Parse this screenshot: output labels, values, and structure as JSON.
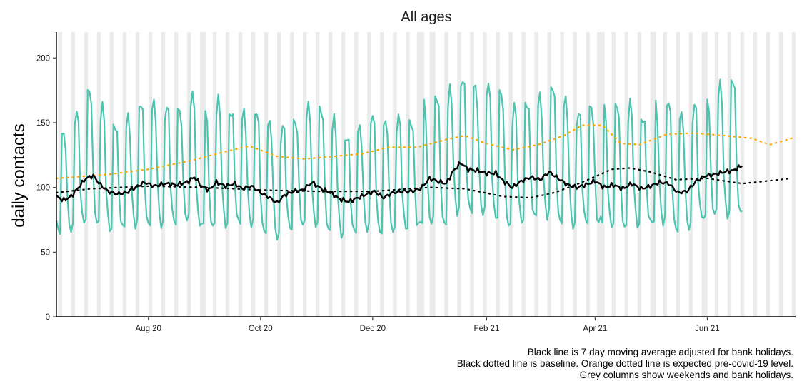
{
  "chart_data": {
    "type": "line",
    "title": "All ages",
    "xlabel": "",
    "ylabel": "daily contacts",
    "xlim": [
      "2020-06-12",
      "2021-07-19"
    ],
    "ylim": [
      0,
      220
    ],
    "y_ticks": [
      0,
      50,
      100,
      150,
      200
    ],
    "x_ticks": [
      {
        "label": "Aug 20",
        "date": "2020-08-01"
      },
      {
        "label": "Oct 20",
        "date": "2020-10-01"
      },
      {
        "label": "Dec 20",
        "date": "2020-12-01"
      },
      {
        "label": "Feb 21",
        "date": "2021-02-01"
      },
      {
        "label": "Apr 21",
        "date": "2021-04-01"
      },
      {
        "label": "Jun 21",
        "date": "2021-06-01"
      }
    ],
    "grid": false,
    "bank_holidays": [
      "2020-08-31",
      "2020-12-25",
      "2020-12-28",
      "2021-01-01",
      "2021-04-02",
      "2021-04-05",
      "2021-05-03",
      "2021-05-31"
    ],
    "daily_start": "2020-06-12",
    "daily_end": "2021-06-20",
    "expected_end": "2021-07-17",
    "colors": {
      "daily": "#4dc4b0",
      "moving_average": "#000000",
      "baseline": "#000000",
      "expected": "#ffa500",
      "weekend_columns": "#ebebeb"
    },
    "moving_average_points": [
      [
        "2020-06-12",
        93
      ],
      [
        "2020-06-16",
        90
      ],
      [
        "2020-06-20",
        93
      ],
      [
        "2020-06-24",
        100
      ],
      [
        "2020-06-28",
        107
      ],
      [
        "2020-07-02",
        109
      ],
      [
        "2020-07-06",
        102
      ],
      [
        "2020-07-10",
        97
      ],
      [
        "2020-07-15",
        95
      ],
      [
        "2020-07-20",
        96
      ],
      [
        "2020-07-25",
        100
      ],
      [
        "2020-07-30",
        104
      ],
      [
        "2020-08-04",
        101
      ],
      [
        "2020-08-10",
        103
      ],
      [
        "2020-08-16",
        102
      ],
      [
        "2020-08-22",
        104
      ],
      [
        "2020-08-26",
        108
      ],
      [
        "2020-08-30",
        101
      ],
      [
        "2020-09-03",
        98
      ],
      [
        "2020-09-07",
        104
      ],
      [
        "2020-09-12",
        101
      ],
      [
        "2020-09-17",
        103
      ],
      [
        "2020-09-21",
        99
      ],
      [
        "2020-09-26",
        101
      ],
      [
        "2020-10-01",
        96
      ],
      [
        "2020-10-06",
        92
      ],
      [
        "2020-10-10",
        88
      ],
      [
        "2020-10-14",
        94
      ],
      [
        "2020-10-19",
        97
      ],
      [
        "2020-10-24",
        98
      ],
      [
        "2020-10-29",
        104
      ],
      [
        "2020-11-03",
        99
      ],
      [
        "2020-11-08",
        96
      ],
      [
        "2020-11-13",
        91
      ],
      [
        "2020-11-18",
        89
      ],
      [
        "2020-11-23",
        92
      ],
      [
        "2020-11-28",
        95
      ],
      [
        "2020-12-02",
        97
      ],
      [
        "2020-12-07",
        92
      ],
      [
        "2020-12-12",
        96
      ],
      [
        "2020-12-17",
        97
      ],
      [
        "2020-12-22",
        97
      ],
      [
        "2020-12-27",
        99
      ],
      [
        "2021-01-01",
        107
      ],
      [
        "2021-01-05",
        105
      ],
      [
        "2021-01-10",
        103
      ],
      [
        "2021-01-14",
        113
      ],
      [
        "2021-01-18",
        119
      ],
      [
        "2021-01-22",
        114
      ],
      [
        "2021-01-27",
        113
      ],
      [
        "2021-02-01",
        111
      ],
      [
        "2021-02-06",
        111
      ],
      [
        "2021-02-10",
        105
      ],
      [
        "2021-02-15",
        100
      ],
      [
        "2021-02-20",
        105
      ],
      [
        "2021-02-25",
        108
      ],
      [
        "2021-03-02",
        106
      ],
      [
        "2021-03-07",
        112
      ],
      [
        "2021-03-12",
        107
      ],
      [
        "2021-03-17",
        102
      ],
      [
        "2021-03-22",
        100
      ],
      [
        "2021-03-27",
        102
      ],
      [
        "2021-04-01",
        105
      ],
      [
        "2021-04-06",
        100
      ],
      [
        "2021-04-11",
        102
      ],
      [
        "2021-04-16",
        99
      ],
      [
        "2021-04-21",
        103
      ],
      [
        "2021-04-26",
        99
      ],
      [
        "2021-05-01",
        101
      ],
      [
        "2021-05-06",
        104
      ],
      [
        "2021-05-11",
        103
      ],
      [
        "2021-05-16",
        96
      ],
      [
        "2021-05-21",
        97
      ],
      [
        "2021-05-26",
        105
      ],
      [
        "2021-05-31",
        109
      ],
      [
        "2021-06-05",
        110
      ],
      [
        "2021-06-10",
        112
      ],
      [
        "2021-06-15",
        113
      ],
      [
        "2021-06-20",
        117
      ]
    ],
    "baseline_points": [
      [
        "2020-06-12",
        96
      ],
      [
        "2020-07-01",
        99
      ],
      [
        "2020-08-01",
        101
      ],
      [
        "2020-09-01",
        100
      ],
      [
        "2020-10-01",
        98
      ],
      [
        "2020-11-01",
        97
      ],
      [
        "2020-12-01",
        97
      ],
      [
        "2021-01-01",
        100
      ],
      [
        "2021-01-20",
        99
      ],
      [
        "2021-02-10",
        93
      ],
      [
        "2021-02-25",
        92
      ],
      [
        "2021-03-10",
        96
      ],
      [
        "2021-03-25",
        104
      ],
      [
        "2021-04-10",
        114
      ],
      [
        "2021-04-20",
        115
      ],
      [
        "2021-05-01",
        112
      ],
      [
        "2021-05-15",
        106
      ],
      [
        "2021-06-01",
        107
      ],
      [
        "2021-06-20",
        103
      ],
      [
        "2021-07-17",
        107
      ]
    ],
    "expected_points": [
      [
        "2020-06-12",
        107
      ],
      [
        "2020-07-10",
        110
      ],
      [
        "2020-08-01",
        114
      ],
      [
        "2020-08-25",
        121
      ],
      [
        "2020-09-10",
        127
      ],
      [
        "2020-09-25",
        132
      ],
      [
        "2020-10-10",
        124
      ],
      [
        "2020-10-25",
        122
      ],
      [
        "2020-11-10",
        124
      ],
      [
        "2020-11-25",
        126
      ],
      [
        "2020-12-10",
        131
      ],
      [
        "2020-12-25",
        131
      ],
      [
        "2021-01-10",
        137
      ],
      [
        "2021-01-20",
        140
      ],
      [
        "2021-02-01",
        134
      ],
      [
        "2021-02-15",
        129
      ],
      [
        "2021-03-01",
        133
      ],
      [
        "2021-03-15",
        140
      ],
      [
        "2021-03-25",
        148
      ],
      [
        "2021-04-05",
        148
      ],
      [
        "2021-04-15",
        134
      ],
      [
        "2021-04-25",
        133
      ],
      [
        "2021-05-10",
        141
      ],
      [
        "2021-05-25",
        142
      ],
      [
        "2021-06-10",
        140
      ],
      [
        "2021-06-25",
        138
      ],
      [
        "2021-07-05",
        133
      ],
      [
        "2021-07-17",
        138
      ]
    ]
  },
  "caption": [
    "Black line is 7 day moving average adjusted for bank holidays.",
    "Black dotted line is baseline. Orange dotted line is expected pre-covid-19 level.",
    "Grey columns show weekends and bank holidays."
  ]
}
